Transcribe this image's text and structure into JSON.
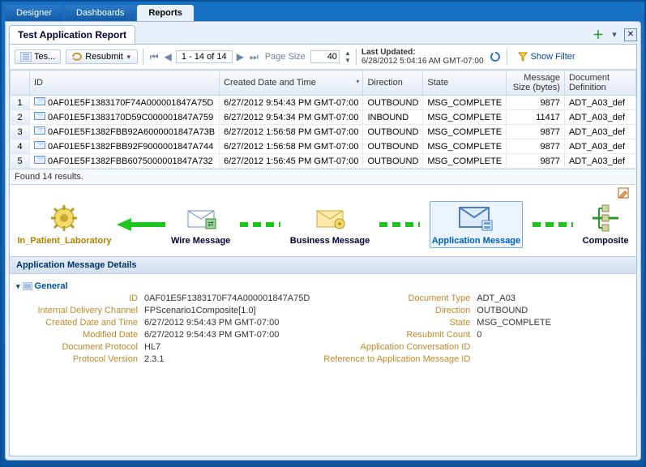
{
  "tabs": [
    "Designer",
    "Dashboards",
    "Reports"
  ],
  "activeTab": 2,
  "subTab": "Test Application Report",
  "toolbar": {
    "tes": "Tes...",
    "resubmit": "Resubmit",
    "pager": "1 - 14 of 14",
    "pageSizeLabel": "Page Size",
    "pageSize": "40",
    "lastUpdatedLabel": "Last Updated:",
    "lastUpdatedValue": "6/28/2012 5:04:16 AM GMT-07:00",
    "showFilter": "Show Filter"
  },
  "columns": [
    "",
    "ID",
    "Created Date and Time",
    "Direction",
    "State",
    "Message Size (bytes)",
    "Document Definition"
  ],
  "sortedCol": 2,
  "rows": [
    {
      "n": 1,
      "id": "0AF01E5F1383170F74A000001847A75D",
      "dt": "6/27/2012 9:54:43 PM GMT-07:00",
      "dir": "OUTBOUND",
      "st": "MSG_COMPLETE",
      "sz": "9877",
      "def": "ADT_A03_def"
    },
    {
      "n": 2,
      "id": "0AF01E5F1383170D59C000001847A759",
      "dt": "6/27/2012 9:54:34 PM GMT-07:00",
      "dir": "INBOUND",
      "st": "MSG_COMPLETE",
      "sz": "11417",
      "def": "ADT_A03_def"
    },
    {
      "n": 3,
      "id": "0AF01E5F1382FBB92A6000001847A73B",
      "dt": "6/27/2012 1:56:58 PM GMT-07:00",
      "dir": "OUTBOUND",
      "st": "MSG_COMPLETE",
      "sz": "9877",
      "def": "ADT_A03_def"
    },
    {
      "n": 4,
      "id": "0AF01E5F1382FBB92F9000001847A744",
      "dt": "6/27/2012 1:56:58 PM GMT-07:00",
      "dir": "OUTBOUND",
      "st": "MSG_COMPLETE",
      "sz": "9877",
      "def": "ADT_A03_def"
    },
    {
      "n": 5,
      "id": "0AF01E5F1382FBB6075000001847A732",
      "dt": "6/27/2012 1:56:45 PM GMT-07:00",
      "dir": "OUTBOUND",
      "st": "MSG_COMPLETE",
      "sz": "9877",
      "def": "ADT_A03_def"
    }
  ],
  "resultsFound": "Found 14 results.",
  "flow": {
    "items": [
      {
        "label": "In_Patient_Laboratory",
        "key": "inpatient",
        "color": "#b08000"
      },
      {
        "label": "Wire Message",
        "key": "wire",
        "color": "#003"
      },
      {
        "label": "Business Message",
        "key": "business",
        "color": "#003"
      },
      {
        "label": "Application Message",
        "key": "appmsg",
        "color": "#005fbf",
        "sel": true
      },
      {
        "label": "Composite",
        "key": "composite",
        "color": "#003"
      }
    ]
  },
  "detailsHeader": "Application Message Details",
  "section": "General",
  "fields": [
    {
      "l": "ID",
      "v": "0AF01E5F1383170F74A000001847A75D"
    },
    {
      "l": "Document Type",
      "v": "ADT_A03"
    },
    {
      "l": "Internal Delivery Channel",
      "v": "FPScenario1Composite[1.0]"
    },
    {
      "l": "Direction",
      "v": "OUTBOUND"
    },
    {
      "l": "Created Date and Time",
      "v": "6/27/2012 9:54:43 PM GMT-07:00"
    },
    {
      "l": "State",
      "v": "MSG_COMPLETE"
    },
    {
      "l": "Modified Date",
      "v": "6/27/2012 9:54:43 PM GMT-07:00"
    },
    {
      "l": "Resubmit Count",
      "v": "0"
    },
    {
      "l": "Document Protocol",
      "v": "HL7"
    },
    {
      "l": "Application Conversation ID",
      "v": ""
    },
    {
      "l": "Protocol Version",
      "v": "2.3.1"
    },
    {
      "l": "Reference to Application Message ID",
      "v": ""
    }
  ]
}
